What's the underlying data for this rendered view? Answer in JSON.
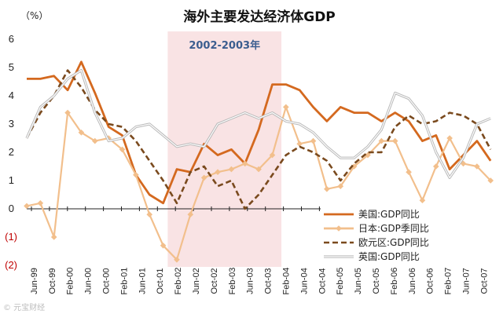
{
  "chart_data": {
    "type": "line",
    "title": "海外主要发达经济体GDP",
    "unit_label": "（%）",
    "ylim": [
      -2,
      6
    ],
    "y_ticks": [
      {
        "value": 6,
        "label": "6"
      },
      {
        "value": 5,
        "label": "5"
      },
      {
        "value": 4,
        "label": "4"
      },
      {
        "value": 3,
        "label": "3"
      },
      {
        "value": 2,
        "label": "2"
      },
      {
        "value": 1,
        "label": "1"
      },
      {
        "value": 0,
        "label": "0"
      },
      {
        "value": -1,
        "label": "(1)"
      },
      {
        "value": -2,
        "label": "(2)"
      }
    ],
    "x_tick_labels": [
      "Jun-99",
      "Oct-99",
      "Feb-00",
      "Jun-00",
      "Oct-00",
      "Feb-01",
      "Jun-01",
      "Oct-01",
      "Feb-02",
      "Jun-02",
      "Oct-02",
      "Feb-03",
      "Jun-03",
      "Oct-03",
      "Feb-04",
      "Jun-04",
      "Oct-04",
      "Feb-05",
      "Jun-05",
      "Oct-05",
      "Feb-06",
      "Jun-06",
      "Oct-06",
      "Feb-07",
      "Jun-07",
      "Oct-07"
    ],
    "x_range": [
      "1999-06",
      "2008-01"
    ],
    "shaded_period": {
      "label": "2002-2003年",
      "start": "2002-01",
      "end": "2004-02"
    },
    "legend_position": "bottom-right",
    "grid": false,
    "series": [
      {
        "name": "美国:GDP同比",
        "style": "solid",
        "color": "#d4691f",
        "points": [
          [
            "1999-06",
            4.6
          ],
          [
            "1999-09",
            4.6
          ],
          [
            "1999-12",
            4.7
          ],
          [
            "2000-03",
            4.2
          ],
          [
            "2000-06",
            5.2
          ],
          [
            "2000-09",
            4.1
          ],
          [
            "2000-12",
            2.9
          ],
          [
            "2001-03",
            2.6
          ],
          [
            "2001-06",
            1.2
          ],
          [
            "2001-09",
            0.5
          ],
          [
            "2001-12",
            0.2
          ],
          [
            "2002-03",
            1.4
          ],
          [
            "2002-06",
            1.3
          ],
          [
            "2002-09",
            2.3
          ],
          [
            "2002-12",
            1.9
          ],
          [
            "2003-03",
            2.1
          ],
          [
            "2003-06",
            1.6
          ],
          [
            "2003-09",
            2.8
          ],
          [
            "2003-12",
            4.4
          ],
          [
            "2004-03",
            4.4
          ],
          [
            "2004-06",
            4.2
          ],
          [
            "2004-09",
            3.6
          ],
          [
            "2004-12",
            3.1
          ],
          [
            "2005-03",
            3.6
          ],
          [
            "2005-06",
            3.4
          ],
          [
            "2005-09",
            3.4
          ],
          [
            "2005-12",
            3.1
          ],
          [
            "2006-03",
            3.4
          ],
          [
            "2006-06",
            3.1
          ],
          [
            "2006-09",
            2.4
          ],
          [
            "2006-12",
            2.6
          ],
          [
            "2007-03",
            1.4
          ],
          [
            "2007-06",
            1.9
          ],
          [
            "2007-09",
            2.4
          ],
          [
            "2007-12",
            1.7
          ]
        ]
      },
      {
        "name": "日本:GDP季同比",
        "style": "solid-markers",
        "color": "#f2bf8c",
        "points": [
          [
            "1999-06",
            0.1
          ],
          [
            "1999-09",
            0.2
          ],
          [
            "1999-12",
            -1.0
          ],
          [
            "2000-03",
            3.4
          ],
          [
            "2000-06",
            2.7
          ],
          [
            "2000-09",
            2.4
          ],
          [
            "2000-12",
            2.5
          ],
          [
            "2001-03",
            2.1
          ],
          [
            "2001-06",
            1.2
          ],
          [
            "2001-09",
            -0.2
          ],
          [
            "2001-12",
            -1.3
          ],
          [
            "2002-03",
            -1.8
          ],
          [
            "2002-06",
            -0.2
          ],
          [
            "2002-09",
            1.1
          ],
          [
            "2002-12",
            1.3
          ],
          [
            "2003-03",
            1.4
          ],
          [
            "2003-06",
            1.6
          ],
          [
            "2003-09",
            1.4
          ],
          [
            "2003-12",
            1.9
          ],
          [
            "2004-03",
            3.6
          ],
          [
            "2004-06",
            2.3
          ],
          [
            "2004-09",
            2.4
          ],
          [
            "2004-12",
            0.7
          ],
          [
            "2005-03",
            0.8
          ],
          [
            "2005-06",
            1.5
          ],
          [
            "2005-09",
            1.9
          ],
          [
            "2005-12",
            2.4
          ],
          [
            "2006-03",
            2.4
          ],
          [
            "2006-06",
            1.3
          ],
          [
            "2006-09",
            0.3
          ],
          [
            "2006-12",
            1.5
          ],
          [
            "2007-03",
            2.5
          ],
          [
            "2007-06",
            1.6
          ],
          [
            "2007-09",
            1.5
          ],
          [
            "2007-12",
            1.0
          ]
        ]
      },
      {
        "name": "欧元区:GDP同比",
        "style": "dashed",
        "color": "#7a4a1e",
        "points": [
          [
            "1999-06",
            2.5
          ],
          [
            "1999-09",
            3.4
          ],
          [
            "1999-12",
            4.0
          ],
          [
            "2000-03",
            4.9
          ],
          [
            "2000-06",
            4.3
          ],
          [
            "2000-09",
            3.5
          ],
          [
            "2000-12",
            3.0
          ],
          [
            "2001-03",
            2.9
          ],
          [
            "2001-06",
            2.4
          ],
          [
            "2001-09",
            1.7
          ],
          [
            "2001-12",
            1.0
          ],
          [
            "2002-03",
            0.2
          ],
          [
            "2002-06",
            1.3
          ],
          [
            "2002-09",
            1.5
          ],
          [
            "2002-12",
            0.8
          ],
          [
            "2003-03",
            1.0
          ],
          [
            "2003-06",
            0.0
          ],
          [
            "2003-09",
            0.5
          ],
          [
            "2003-12",
            1.2
          ],
          [
            "2004-03",
            1.9
          ],
          [
            "2004-06",
            2.2
          ],
          [
            "2004-09",
            2.0
          ],
          [
            "2004-12",
            1.7
          ],
          [
            "2005-03",
            1.0
          ],
          [
            "2005-06",
            1.6
          ],
          [
            "2005-09",
            2.0
          ],
          [
            "2005-12",
            2.0
          ],
          [
            "2006-03",
            2.9
          ],
          [
            "2006-06",
            3.3
          ],
          [
            "2006-09",
            3.0
          ],
          [
            "2006-12",
            3.1
          ],
          [
            "2007-03",
            3.4
          ],
          [
            "2007-06",
            3.3
          ],
          [
            "2007-09",
            3.0
          ],
          [
            "2007-12",
            2.1
          ]
        ]
      },
      {
        "name": "英国:GDP同比",
        "style": "double-gray",
        "color": "#b9b9b9",
        "points": [
          [
            "1999-06",
            2.5
          ],
          [
            "1999-09",
            3.6
          ],
          [
            "1999-12",
            4.0
          ],
          [
            "2000-03",
            4.6
          ],
          [
            "2000-06",
            4.9
          ],
          [
            "2000-09",
            3.4
          ],
          [
            "2000-12",
            2.4
          ],
          [
            "2001-03",
            2.5
          ],
          [
            "2001-06",
            2.9
          ],
          [
            "2001-09",
            3.0
          ],
          [
            "2001-12",
            2.6
          ],
          [
            "2002-03",
            2.2
          ],
          [
            "2002-06",
            2.3
          ],
          [
            "2002-09",
            2.2
          ],
          [
            "2002-12",
            3.0
          ],
          [
            "2003-03",
            3.2
          ],
          [
            "2003-06",
            3.4
          ],
          [
            "2003-09",
            3.2
          ],
          [
            "2003-12",
            3.4
          ],
          [
            "2004-03",
            3.1
          ],
          [
            "2004-06",
            3.0
          ],
          [
            "2004-09",
            2.7
          ],
          [
            "2004-12",
            2.2
          ],
          [
            "2005-03",
            1.8
          ],
          [
            "2005-06",
            1.8
          ],
          [
            "2005-09",
            2.2
          ],
          [
            "2005-12",
            2.8
          ],
          [
            "2006-03",
            4.1
          ],
          [
            "2006-06",
            3.9
          ],
          [
            "2006-09",
            3.3
          ],
          [
            "2006-12",
            2.0
          ],
          [
            "2007-03",
            1.1
          ],
          [
            "2007-06",
            1.8
          ],
          [
            "2007-09",
            3.0
          ],
          [
            "2007-12",
            3.2
          ]
        ]
      }
    ]
  },
  "watermark": "© 元宝财经"
}
